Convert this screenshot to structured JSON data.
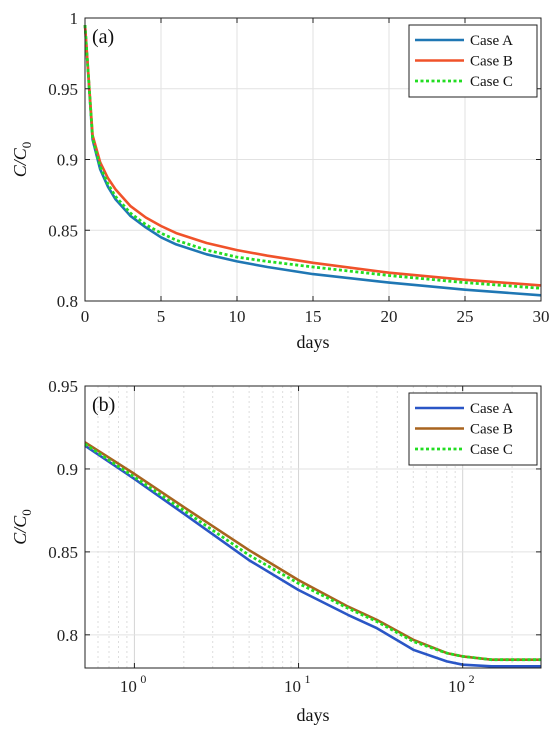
{
  "chart_data": [
    {
      "panel": "(a)",
      "type": "line",
      "xlabel": "days",
      "ylabel": "C/C",
      "ylabel_sub": "0",
      "xscale": "linear",
      "xlim": [
        0,
        30
      ],
      "ylim": [
        0.8,
        1
      ],
      "xticks": [
        "0",
        "5",
        "10",
        "15",
        "20",
        "25",
        "30"
      ],
      "yticks": [
        "0.8",
        "0.85",
        "0.9",
        "0.95",
        "1"
      ],
      "grid": true,
      "legend": "top-right",
      "series": [
        {
          "name": "Case A",
          "color": "#1f77b4",
          "style": "solid",
          "x": [
            0,
            0.5,
            1,
            1.5,
            2,
            3,
            4,
            5,
            6,
            8,
            10,
            12,
            15,
            20,
            25,
            30
          ],
          "y": [
            0.995,
            0.914,
            0.893,
            0.881,
            0.872,
            0.86,
            0.852,
            0.845,
            0.84,
            0.833,
            0.828,
            0.824,
            0.819,
            0.813,
            0.808,
            0.804
          ]
        },
        {
          "name": "Case B",
          "color": "#f0522a",
          "style": "solid",
          "x": [
            0,
            0.5,
            1,
            1.5,
            2,
            3,
            4,
            5,
            6,
            8,
            10,
            12,
            15,
            20,
            25,
            30
          ],
          "y": [
            0.995,
            0.917,
            0.898,
            0.887,
            0.879,
            0.867,
            0.859,
            0.853,
            0.848,
            0.841,
            0.836,
            0.832,
            0.827,
            0.82,
            0.815,
            0.811
          ]
        },
        {
          "name": "Case C",
          "color": "#22dd22",
          "style": "dotted",
          "x": [
            0,
            0.5,
            1,
            1.5,
            2,
            3,
            4,
            5,
            6,
            8,
            10,
            12,
            15,
            20,
            25,
            30
          ],
          "y": [
            0.995,
            0.915,
            0.895,
            0.883,
            0.874,
            0.862,
            0.854,
            0.848,
            0.843,
            0.836,
            0.831,
            0.828,
            0.824,
            0.818,
            0.813,
            0.809
          ]
        }
      ]
    },
    {
      "panel": "(b)",
      "type": "line",
      "xlabel": "days",
      "ylabel": "C/C",
      "ylabel_sub": "0",
      "xscale": "log",
      "xlim": [
        0.5,
        300
      ],
      "ylim": [
        0.78,
        0.95
      ],
      "xticks": [
        "10^0",
        "10^1",
        "10^2"
      ],
      "yticks": [
        "0.8",
        "0.85",
        "0.9",
        "0.95"
      ],
      "grid": true,
      "legend": "top-right",
      "series": [
        {
          "name": "Case A",
          "color": "#2a56c6",
          "style": "solid",
          "x": [
            0.5,
            1,
            2,
            5,
            10,
            20,
            30,
            50,
            80,
            100,
            150,
            200,
            300
          ],
          "y": [
            0.914,
            0.894,
            0.873,
            0.845,
            0.827,
            0.812,
            0.804,
            0.791,
            0.784,
            0.782,
            0.781,
            0.781,
            0.781
          ]
        },
        {
          "name": "Case B",
          "color": "#a8641f",
          "style": "solid",
          "x": [
            0.5,
            1,
            2,
            5,
            10,
            20,
            30,
            50,
            80,
            100,
            150,
            200,
            300
          ],
          "y": [
            0.916,
            0.897,
            0.877,
            0.851,
            0.833,
            0.817,
            0.809,
            0.797,
            0.789,
            0.787,
            0.785,
            0.785,
            0.785
          ]
        },
        {
          "name": "Case C",
          "color": "#22dd22",
          "style": "dotted",
          "x": [
            0.5,
            1,
            2,
            5,
            10,
            20,
            30,
            50,
            80,
            100,
            150,
            200,
            300
          ],
          "y": [
            0.915,
            0.895,
            0.875,
            0.848,
            0.831,
            0.816,
            0.808,
            0.796,
            0.789,
            0.787,
            0.785,
            0.785,
            0.785
          ]
        }
      ]
    }
  ]
}
